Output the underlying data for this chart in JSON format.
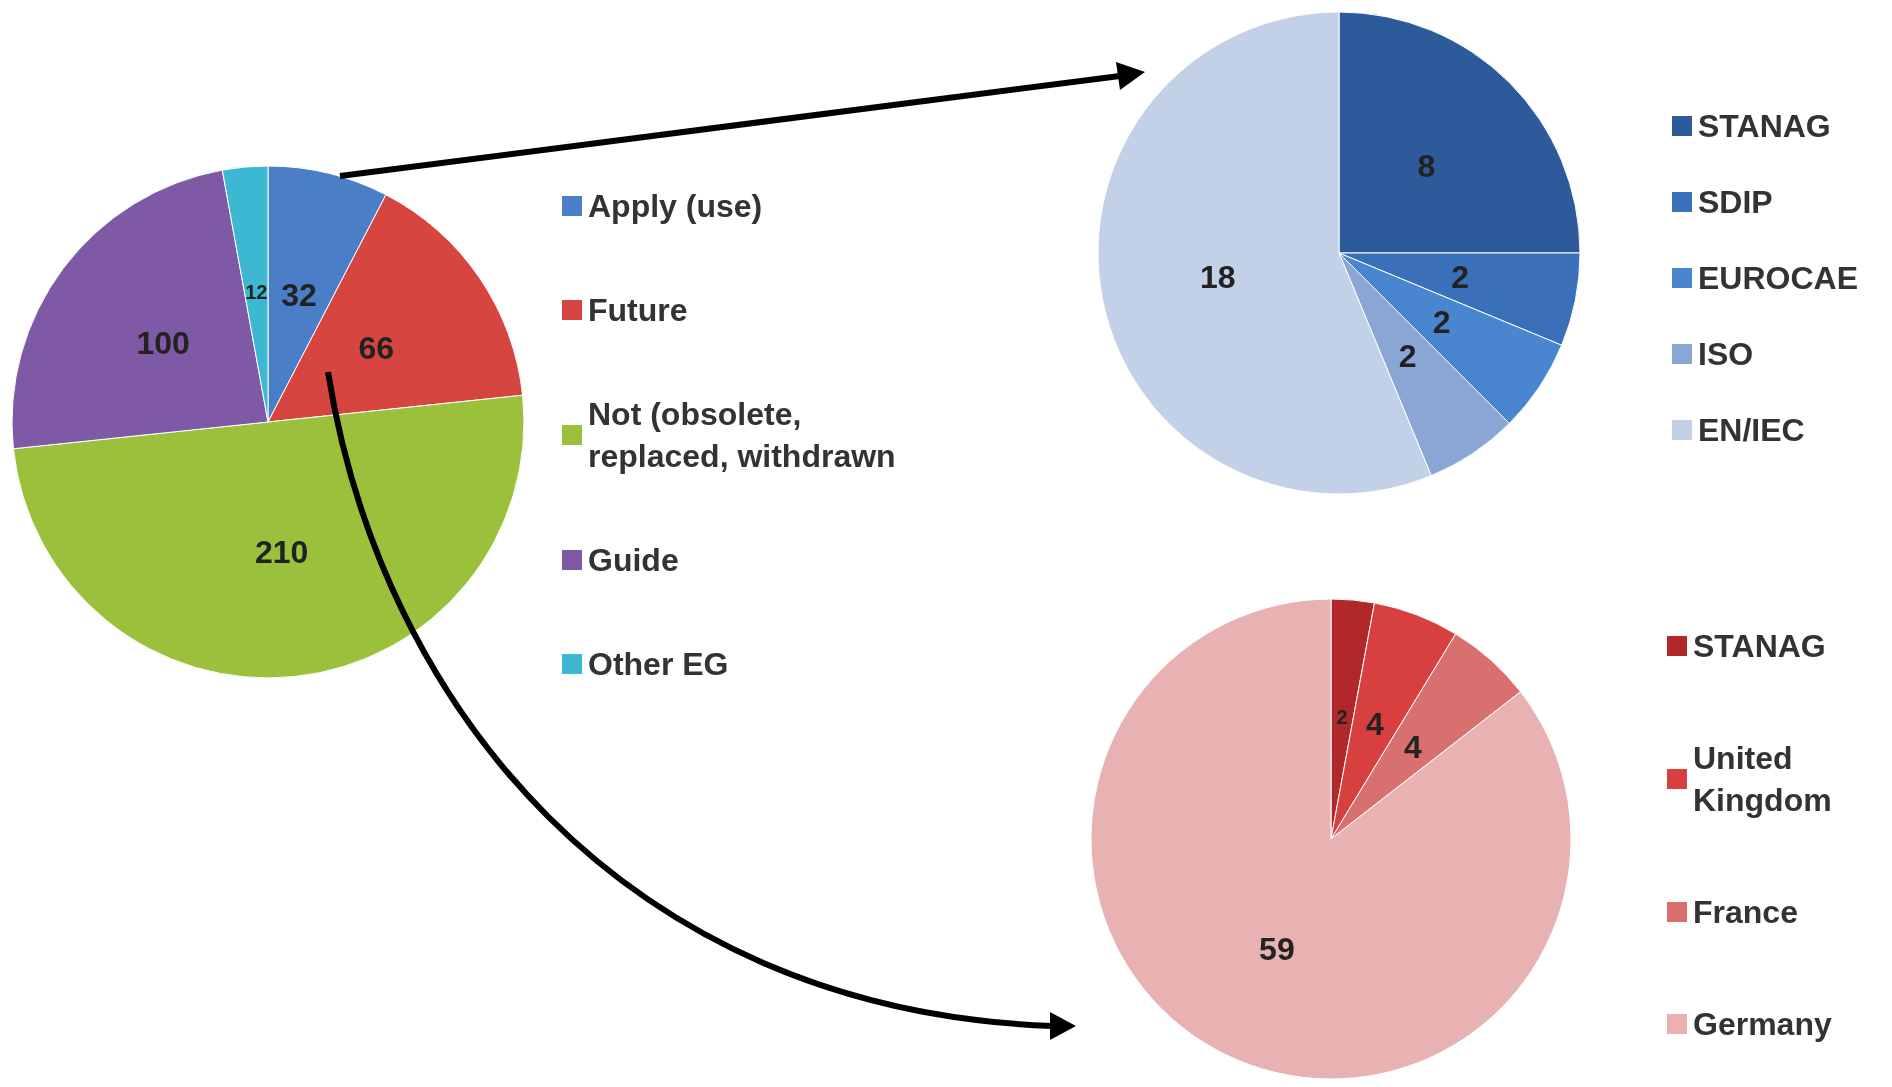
{
  "chart_data": [
    {
      "type": "pie",
      "categories": [
        "Apply (use)",
        "Future",
        "Not (obsolete, replaced, withdrawn",
        "Guide",
        "Other EG"
      ],
      "values": [
        32,
        66,
        210,
        100,
        12
      ],
      "colors": [
        "#4a7fc8",
        "#d64540",
        "#9bc13c",
        "#7e59a6",
        "#3cb8d3"
      ],
      "data_labels": true,
      "legend": "right"
    },
    {
      "type": "pie",
      "categories": [
        "STANAG",
        "SDIP",
        "EUROCAE",
        "ISO",
        "EN/IEC"
      ],
      "values": [
        8,
        2,
        2,
        2,
        18
      ],
      "colors": [
        "#2c5a9a",
        "#3a70ba",
        "#4a86d0",
        "#8aa6d4",
        "#c2d0e8"
      ],
      "data_labels": true,
      "legend": "right"
    },
    {
      "type": "pie",
      "categories": [
        "STANAG",
        "United Kingdom",
        "France",
        "Germany"
      ],
      "values": [
        2,
        4,
        4,
        59
      ],
      "colors": [
        "#b0282a",
        "#d84040",
        "#d97070",
        "#e8b2b2"
      ],
      "data_labels": true,
      "legend": "right"
    }
  ]
}
